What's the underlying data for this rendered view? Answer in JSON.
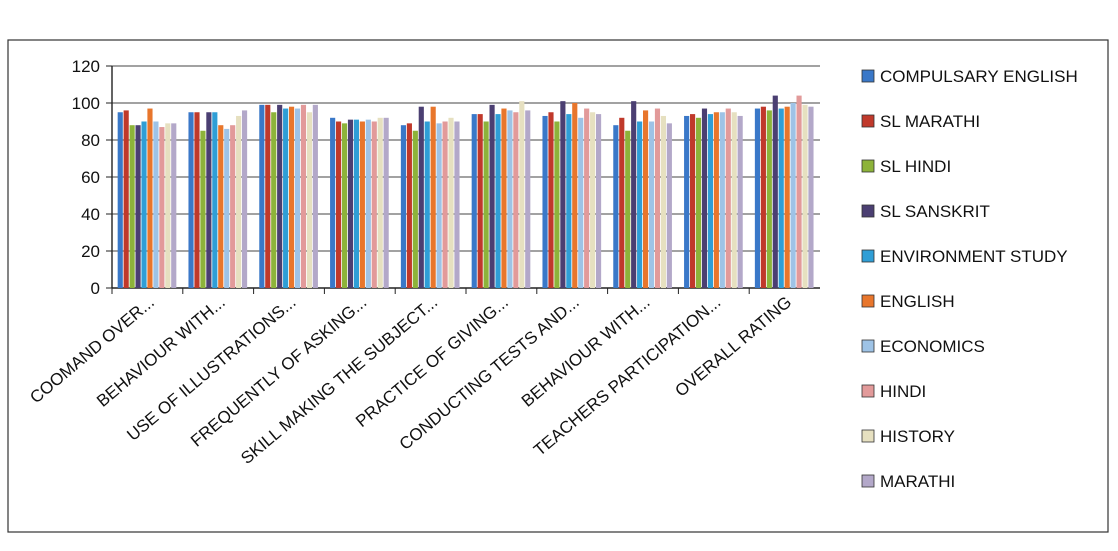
{
  "chart_data": {
    "type": "bar",
    "title": "",
    "xlabel": "",
    "ylabel": "",
    "ylim": [
      0,
      120
    ],
    "yticks": [
      0,
      20,
      40,
      60,
      80,
      100,
      120
    ],
    "grid": true,
    "legend_position": "right",
    "categories": [
      "COOMAND OVER...",
      "BEHAVIOUR WITH...",
      "USE OF ILLUSTRATIONS...",
      "FREQUENTLY OF ASKING...",
      "SKILL MAKING THE SUBJECT...",
      "PRACTICE OF GIVING...",
      "CONDUCTING TESTS AND...",
      "BEHAVIOUR WITH...",
      "TEACHERS PARTICIPATION...",
      "OVERALL RATING"
    ],
    "series": [
      {
        "name": "COMPULSARY ENGLISH",
        "color": "#3a78c8",
        "values": [
          95,
          95,
          99,
          92,
          88,
          94,
          93,
          88,
          93,
          97
        ]
      },
      {
        "name": "SL MARATHI",
        "color": "#c0392b",
        "values": [
          96,
          95,
          99,
          90,
          89,
          94,
          95,
          92,
          94,
          98
        ]
      },
      {
        "name": "SL HINDI",
        "color": "#8db33a",
        "values": [
          88,
          85,
          95,
          89,
          85,
          90,
          90,
          85,
          92,
          96
        ]
      },
      {
        "name": "SL SANSKRIT",
        "color": "#4b3f72",
        "values": [
          88,
          95,
          99,
          91,
          98,
          99,
          101,
          101,
          97,
          104
        ]
      },
      {
        "name": "ENVIRONMENT STUDY",
        "color": "#2f9ed6",
        "values": [
          90,
          95,
          97,
          91,
          90,
          94,
          94,
          90,
          94,
          97
        ]
      },
      {
        "name": "ENGLISH",
        "color": "#e8762c",
        "values": [
          97,
          88,
          98,
          90,
          98,
          97,
          100,
          96,
          95,
          98
        ]
      },
      {
        "name": "ECONOMICS",
        "color": "#9ec3e6",
        "values": [
          90,
          86,
          97,
          91,
          89,
          96,
          92,
          90,
          95,
          100
        ]
      },
      {
        "name": "HINDI",
        "color": "#e29a9a",
        "values": [
          87,
          88,
          99,
          90,
          90,
          95,
          97,
          97,
          97,
          104
        ]
      },
      {
        "name": "HISTORY",
        "color": "#e6e0c0",
        "values": [
          89,
          93,
          95,
          92,
          92,
          101,
          95,
          93,
          95,
          99
        ]
      },
      {
        "name": "MARATHI",
        "color": "#b3a8c9",
        "values": [
          89,
          96,
          99,
          92,
          90,
          96,
          94,
          89,
          93,
          98
        ]
      }
    ]
  }
}
